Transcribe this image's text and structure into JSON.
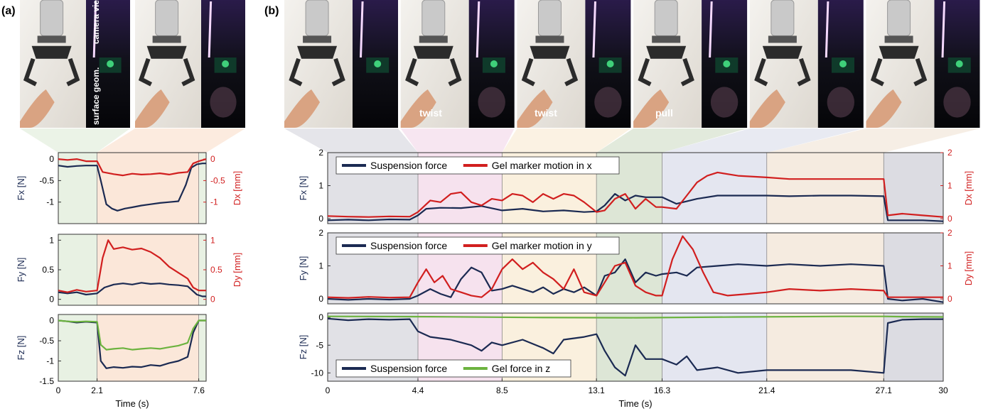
{
  "panels": [
    {
      "id": "a",
      "label": "(a)"
    },
    {
      "id": "b",
      "label": "(b)"
    }
  ],
  "photos": {
    "camera_label": "camera view",
    "geom_label": "surface geom.",
    "b_annotations": [
      "",
      "twist",
      "twist",
      "pull",
      "",
      ""
    ]
  },
  "colors": {
    "force": "#1b2a52",
    "gel": "#d11f1f",
    "gel_z": "#6cb33f",
    "phase_a": [
      "#e8f1e3",
      "#fbe7d9",
      "#e8f1e3"
    ],
    "phase_b": [
      "#e1e1e6",
      "#f6e2ee",
      "#faf0de",
      "#dde6d6",
      "#e4e6f0",
      "#f5ebe0",
      "#dcdce2"
    ]
  },
  "chart_data": [
    {
      "type": "line",
      "id": "a-fx",
      "ylabel": "Fx [N]",
      "ylabel_right": "Dx [mm]",
      "xlim": [
        0,
        8.0
      ],
      "ylim": [
        -1.5,
        0.15
      ],
      "ylim_right": [
        -1.5,
        0.15
      ],
      "yticks": [
        0,
        -0.5,
        -1
      ],
      "yticks_right": [
        0,
        -0.5,
        -1
      ],
      "phase_bounds": [
        0,
        2.1,
        7.6,
        8.0
      ],
      "series": [
        {
          "role": "force",
          "x": [
            0,
            0.5,
            1,
            1.5,
            2.1,
            2.3,
            2.6,
            2.9,
            3.2,
            3.6,
            4,
            4.5,
            5,
            5.5,
            6,
            6.5,
            6.9,
            7.2,
            7.5,
            7.8,
            8
          ],
          "y": [
            -0.15,
            -0.18,
            -0.16,
            -0.15,
            -0.15,
            -0.5,
            -1.05,
            -1.15,
            -1.2,
            -1.15,
            -1.12,
            -1.08,
            -1.05,
            -1.02,
            -1.0,
            -0.98,
            -0.6,
            -0.2,
            -0.12,
            -0.1,
            -0.1
          ]
        },
        {
          "role": "gel",
          "x": [
            0,
            0.5,
            1,
            1.5,
            2.1,
            2.4,
            3,
            3.5,
            4,
            4.5,
            5,
            5.5,
            6,
            6.5,
            7,
            7.3,
            7.6,
            8
          ],
          "y": [
            0.0,
            -0.02,
            0.0,
            -0.05,
            -0.05,
            -0.3,
            -0.35,
            -0.38,
            -0.34,
            -0.36,
            -0.35,
            -0.33,
            -0.36,
            -0.32,
            -0.3,
            -0.1,
            -0.05,
            0.0
          ]
        }
      ]
    },
    {
      "type": "line",
      "id": "a-fy",
      "ylabel": "Fy [N]",
      "ylabel_right": "Dy [mm]",
      "xlim": [
        0,
        8.0
      ],
      "ylim": [
        -0.1,
        1.1
      ],
      "ylim_right": [
        -0.1,
        1.1
      ],
      "yticks": [
        0,
        0.5,
        1
      ],
      "yticks_right": [
        0,
        0.5,
        1
      ],
      "phase_bounds": [
        0,
        2.1,
        7.6,
        8.0
      ],
      "series": [
        {
          "role": "force",
          "x": [
            0,
            0.5,
            1,
            1.5,
            2.1,
            2.5,
            3,
            3.5,
            4,
            4.5,
            5,
            5.5,
            6,
            6.5,
            7,
            7.5,
            7.8,
            8
          ],
          "y": [
            0.12,
            0.1,
            0.12,
            0.08,
            0.1,
            0.2,
            0.25,
            0.27,
            0.25,
            0.28,
            0.26,
            0.27,
            0.25,
            0.24,
            0.22,
            0.08,
            0.05,
            0.05
          ]
        },
        {
          "role": "gel",
          "x": [
            0,
            0.5,
            1,
            1.5,
            2.1,
            2.4,
            2.7,
            3,
            3.5,
            4,
            4.5,
            5,
            5.5,
            6,
            6.5,
            7,
            7.3,
            7.6,
            8
          ],
          "y": [
            0.15,
            0.12,
            0.16,
            0.13,
            0.15,
            0.7,
            1.0,
            0.85,
            0.88,
            0.84,
            0.86,
            0.8,
            0.7,
            0.55,
            0.45,
            0.35,
            0.2,
            0.15,
            0.15
          ]
        }
      ]
    },
    {
      "type": "line",
      "id": "a-fz",
      "ylabel": "Fz [N]",
      "xlabel": "Time (s)",
      "xlim": [
        0,
        8.0
      ],
      "ylim": [
        -1.5,
        0.15
      ],
      "yticks": [
        0,
        -0.5,
        -1,
        -1.5
      ],
      "xticks": [
        0,
        2.1,
        7.6
      ],
      "xtick_labels": [
        "0",
        "2.1",
        "7.6"
      ],
      "phase_bounds": [
        0,
        2.1,
        7.6,
        8.0
      ],
      "series": [
        {
          "role": "force",
          "x": [
            0,
            0.5,
            1,
            1.5,
            2.1,
            2.3,
            2.6,
            3,
            3.5,
            4,
            4.5,
            5,
            5.5,
            6,
            6.5,
            7,
            7.3,
            7.6,
            8
          ],
          "y": [
            0.0,
            -0.02,
            -0.05,
            -0.03,
            -0.05,
            -1.0,
            -1.18,
            -1.15,
            -1.17,
            -1.14,
            -1.15,
            -1.1,
            -1.12,
            -1.05,
            -1.0,
            -0.9,
            -0.3,
            0.0,
            0.0
          ]
        },
        {
          "role": "gel_z",
          "x": [
            0,
            0.5,
            1,
            1.5,
            2.1,
            2.3,
            2.6,
            3,
            3.5,
            4,
            4.5,
            5,
            5.5,
            6,
            6.5,
            7,
            7.3,
            7.6,
            8
          ],
          "y": [
            0.0,
            -0.02,
            -0.03,
            -0.02,
            -0.03,
            -0.6,
            -0.72,
            -0.7,
            -0.68,
            -0.72,
            -0.7,
            -0.68,
            -0.7,
            -0.66,
            -0.62,
            -0.55,
            -0.2,
            0.0,
            0.0
          ]
        }
      ]
    },
    {
      "type": "line",
      "id": "b-fx",
      "ylabel": "Fx [N]",
      "ylabel_right": "Dx [mm]",
      "legend": [
        "Suspension force",
        "Gel marker motion in x"
      ],
      "xlim": [
        0,
        30
      ],
      "ylim": [
        -0.15,
        2
      ],
      "ylim_right": [
        -0.15,
        2
      ],
      "yticks": [
        0,
        1,
        2
      ],
      "yticks_right": [
        0,
        1,
        2
      ],
      "phase_bounds": [
        0,
        4.4,
        8.5,
        13.1,
        16.3,
        21.4,
        27.1,
        30
      ],
      "series": [
        {
          "role": "force",
          "x": [
            0,
            1,
            2,
            3,
            4,
            4.4,
            4.8,
            5.5,
            6.5,
            7.5,
            8.5,
            9.5,
            10.5,
            11.5,
            12.5,
            13.1,
            13.5,
            14,
            14.5,
            15,
            15.5,
            16.3,
            17,
            18,
            19,
            20,
            21.4,
            22.5,
            24,
            25.5,
            27.1,
            27.3,
            28,
            29,
            30
          ],
          "y": [
            -0.05,
            -0.03,
            -0.05,
            -0.02,
            -0.03,
            0.1,
            0.3,
            0.33,
            0.32,
            0.38,
            0.25,
            0.3,
            0.22,
            0.25,
            0.2,
            0.22,
            0.4,
            0.75,
            0.55,
            0.7,
            0.65,
            0.65,
            0.45,
            0.6,
            0.7,
            0.7,
            0.7,
            0.68,
            0.7,
            0.7,
            0.68,
            -0.05,
            -0.05,
            -0.05,
            -0.08
          ]
        },
        {
          "role": "gel",
          "x": [
            0,
            1,
            2,
            3,
            4,
            4.4,
            5,
            5.5,
            6,
            6.5,
            7,
            7.5,
            8,
            8.5,
            9,
            9.5,
            10,
            10.5,
            11,
            11.5,
            12,
            12.5,
            13.1,
            13.5,
            14,
            14.5,
            15,
            15.5,
            16,
            16.3,
            17,
            17.5,
            18,
            18.5,
            19,
            20,
            21.4,
            22.5,
            24,
            25.5,
            27.1,
            27.3,
            28,
            29,
            30
          ],
          "y": [
            0.08,
            0.06,
            0.05,
            0.07,
            0.06,
            0.2,
            0.55,
            0.5,
            0.75,
            0.8,
            0.5,
            0.4,
            0.6,
            0.55,
            0.75,
            0.7,
            0.5,
            0.75,
            0.6,
            0.75,
            0.7,
            0.5,
            0.2,
            0.25,
            0.6,
            0.75,
            0.3,
            0.6,
            0.35,
            0.35,
            0.3,
            0.7,
            1.1,
            1.3,
            1.4,
            1.3,
            1.25,
            1.2,
            1.2,
            1.2,
            1.2,
            0.1,
            0.15,
            0.1,
            0.05
          ]
        }
      ]
    },
    {
      "type": "line",
      "id": "b-fy",
      "ylabel": "Fy [N]",
      "ylabel_right": "Dy [mm]",
      "legend": [
        "Suspension force",
        "Gel marker motion in y"
      ],
      "xlim": [
        0,
        30
      ],
      "ylim": [
        -0.15,
        2
      ],
      "ylim_right": [
        -0.15,
        2
      ],
      "yticks": [
        0,
        1,
        2
      ],
      "yticks_right": [
        0,
        1,
        2
      ],
      "phase_bounds": [
        0,
        4.4,
        8.5,
        13.1,
        16.3,
        21.4,
        27.1,
        30
      ],
      "series": [
        {
          "role": "force",
          "x": [
            0,
            1,
            2,
            3,
            4,
            4.4,
            5,
            5.5,
            6,
            6.5,
            7,
            7.5,
            8,
            8.5,
            9,
            9.5,
            10,
            10.5,
            11,
            11.5,
            12,
            12.5,
            13.1,
            13.5,
            14,
            14.5,
            15,
            15.5,
            16,
            16.3,
            17,
            17.5,
            18,
            19,
            20,
            21.4,
            22.5,
            24,
            25.5,
            27.1,
            27.3,
            28,
            29,
            30
          ],
          "y": [
            0.0,
            -0.03,
            0.0,
            -0.02,
            0.0,
            0.1,
            0.3,
            0.15,
            0.05,
            0.6,
            0.95,
            0.8,
            0.25,
            0.3,
            0.4,
            0.3,
            0.2,
            0.35,
            0.15,
            0.3,
            0.2,
            0.35,
            0.1,
            0.7,
            0.8,
            1.2,
            0.5,
            0.8,
            0.7,
            0.75,
            0.8,
            0.7,
            0.95,
            1.0,
            1.05,
            1.0,
            1.05,
            1.0,
            1.05,
            1.0,
            0.0,
            -0.05,
            0.0,
            -0.1
          ]
        },
        {
          "role": "gel",
          "x": [
            0,
            1,
            2,
            3,
            4,
            4.4,
            4.8,
            5.2,
            5.6,
            6,
            6.5,
            7,
            7.5,
            8,
            8.5,
            9,
            9.5,
            10,
            10.5,
            11,
            11.5,
            12,
            12.5,
            13.1,
            13.5,
            14,
            14.5,
            15,
            15.5,
            16,
            16.3,
            16.8,
            17.3,
            17.8,
            18.3,
            18.8,
            19.5,
            20.5,
            21.4,
            22.5,
            24,
            25.5,
            27.1,
            27.3,
            28,
            29,
            30
          ],
          "y": [
            0.05,
            0.03,
            0.06,
            0.04,
            0.05,
            0.5,
            0.9,
            0.5,
            0.7,
            0.3,
            0.2,
            0.1,
            0.05,
            0.3,
            0.9,
            1.2,
            0.9,
            1.1,
            0.8,
            0.6,
            0.3,
            0.9,
            0.2,
            0.1,
            0.5,
            1.0,
            1.1,
            0.4,
            0.2,
            0.1,
            0.1,
            1.2,
            1.9,
            1.5,
            0.8,
            0.2,
            0.1,
            0.15,
            0.2,
            0.3,
            0.25,
            0.3,
            0.25,
            0.05,
            0.05,
            0.05,
            0.05
          ]
        }
      ]
    },
    {
      "type": "line",
      "id": "b-fz",
      "ylabel": "Fz [N]",
      "xlabel": "Time (s)",
      "legend": [
        "Suspension force",
        "Gel force in z"
      ],
      "xlim": [
        0,
        30
      ],
      "ylim": [
        -11.5,
        0.8
      ],
      "yticks": [
        0,
        -5,
        -10
      ],
      "xticks": [
        0,
        4.4,
        8.5,
        13.1,
        16.3,
        21.4,
        27.1,
        30
      ],
      "xtick_labels": [
        "0",
        "4.4",
        "8.5",
        "13.1",
        "16.3",
        "21.4",
        "27.1",
        "30"
      ],
      "phase_bounds": [
        0,
        4.4,
        8.5,
        13.1,
        16.3,
        21.4,
        27.1,
        30
      ],
      "series": [
        {
          "role": "force",
          "x": [
            0,
            1,
            2,
            3,
            4,
            4.4,
            5,
            6,
            7,
            7.5,
            8,
            8.5,
            9.5,
            10.5,
            11,
            11.5,
            12.5,
            13.1,
            13.5,
            14,
            14.5,
            15,
            15.5,
            16.3,
            17,
            17.5,
            18,
            19,
            20,
            21.4,
            22.5,
            24,
            25.5,
            27.1,
            27.3,
            28,
            29,
            30
          ],
          "y": [
            -0.2,
            -0.5,
            -0.3,
            -0.4,
            -0.3,
            -2.5,
            -3.5,
            -4.0,
            -5.0,
            -6.0,
            -4.5,
            -5.0,
            -4.0,
            -5.5,
            -6.5,
            -4.0,
            -3.5,
            -3.0,
            -6.0,
            -9.0,
            -10.5,
            -5.0,
            -7.5,
            -7.5,
            -8.5,
            -7.0,
            -9.5,
            -9.0,
            -10.0,
            -9.5,
            -9.5,
            -9.5,
            -9.5,
            -10.0,
            -1.0,
            -0.4,
            -0.3,
            -0.3
          ]
        },
        {
          "role": "gel_z",
          "x": [
            0,
            5,
            10,
            15,
            20,
            25,
            27.1,
            28,
            30
          ],
          "y": [
            0.2,
            0.15,
            0.0,
            -0.05,
            0.1,
            0.2,
            0.2,
            0.15,
            0.1
          ]
        }
      ]
    }
  ]
}
